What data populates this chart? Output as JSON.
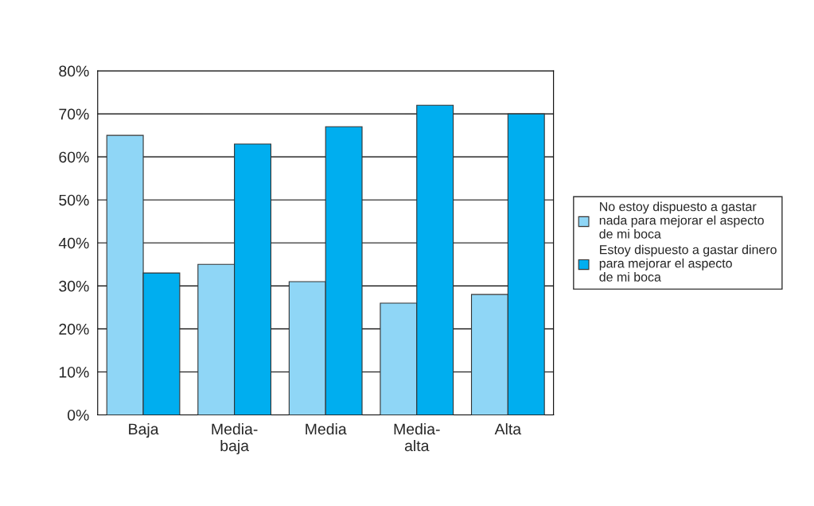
{
  "chart_data": {
    "type": "bar",
    "categories": [
      "Baja",
      "Media-\nbaja",
      "Media",
      "Media-\nalta",
      "Alta"
    ],
    "series": [
      {
        "name": "No estoy dispuesto a gastar\nnada para mejorar el aspecto\nde mi boca",
        "color": "#8fd6f6",
        "values": [
          65,
          35,
          31,
          26,
          28
        ]
      },
      {
        "name": "Estoy dispuesto a gastar dinero\npara mejorar el aspecto\nde mi boca",
        "color": "#00aeef",
        "values": [
          33,
          63,
          67,
          72,
          70
        ]
      }
    ],
    "ylim": [
      0,
      80
    ],
    "yticks": [
      {
        "value": 0,
        "label": "0%"
      },
      {
        "value": 10,
        "label": "10%"
      },
      {
        "value": 20,
        "label": "20%"
      },
      {
        "value": 30,
        "label": "30%"
      },
      {
        "value": 40,
        "label": "40%"
      },
      {
        "value": 50,
        "label": "50%"
      },
      {
        "value": 60,
        "label": "60%"
      },
      {
        "value": 70,
        "label": "70%"
      },
      {
        "value": 80,
        "label": "80%"
      }
    ],
    "grid": "y",
    "legend": "right"
  }
}
